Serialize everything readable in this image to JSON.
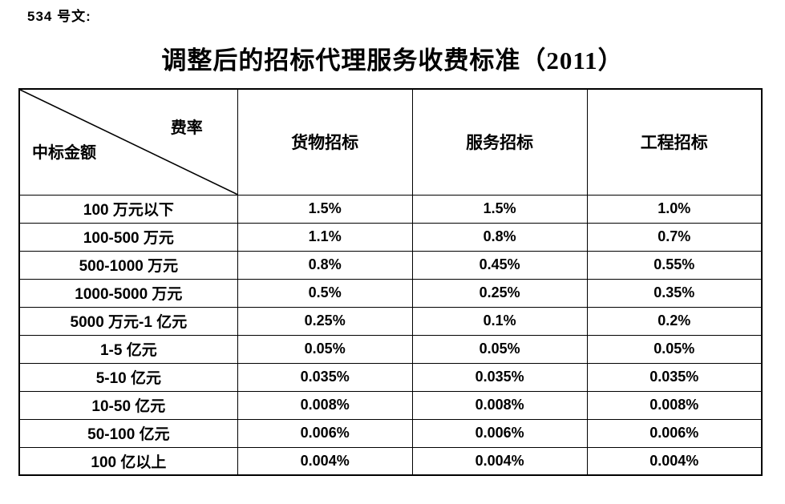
{
  "document": {
    "doc_number": "534 号文:",
    "title": "调整后的招标代理服务收费标准（2011）"
  },
  "table": {
    "corner_top_right": "费率",
    "corner_bottom_left": "中标金额",
    "columns": [
      "货物招标",
      "服务招标",
      "工程招标"
    ],
    "rows": [
      {
        "label": "100 万元以下",
        "values": [
          "1.5%",
          "1.5%",
          "1.0%"
        ]
      },
      {
        "label": "100-500 万元",
        "values": [
          "1.1%",
          "0.8%",
          "0.7%"
        ]
      },
      {
        "label": "500-1000 万元",
        "values": [
          "0.8%",
          "0.45%",
          "0.55%"
        ]
      },
      {
        "label": "1000-5000 万元",
        "values": [
          "0.5%",
          "0.25%",
          "0.35%"
        ]
      },
      {
        "label": "5000 万元-1 亿元",
        "values": [
          "0.25%",
          "0.1%",
          "0.2%"
        ]
      },
      {
        "label": "1-5 亿元",
        "values": [
          "0.05%",
          "0.05%",
          "0.05%"
        ]
      },
      {
        "label": "5-10 亿元",
        "values": [
          "0.035%",
          "0.035%",
          "0.035%"
        ]
      },
      {
        "label": "10-50 亿元",
        "values": [
          "0.008%",
          "0.008%",
          "0.008%"
        ]
      },
      {
        "label": "50-100 亿元",
        "values": [
          "0.006%",
          "0.006%",
          "0.006%"
        ]
      },
      {
        "label": "100 亿以上",
        "values": [
          "0.004%",
          "0.004%",
          "0.004%"
        ]
      }
    ]
  },
  "colors": {
    "text": "#000000",
    "border": "#000000",
    "background": "#ffffff"
  }
}
